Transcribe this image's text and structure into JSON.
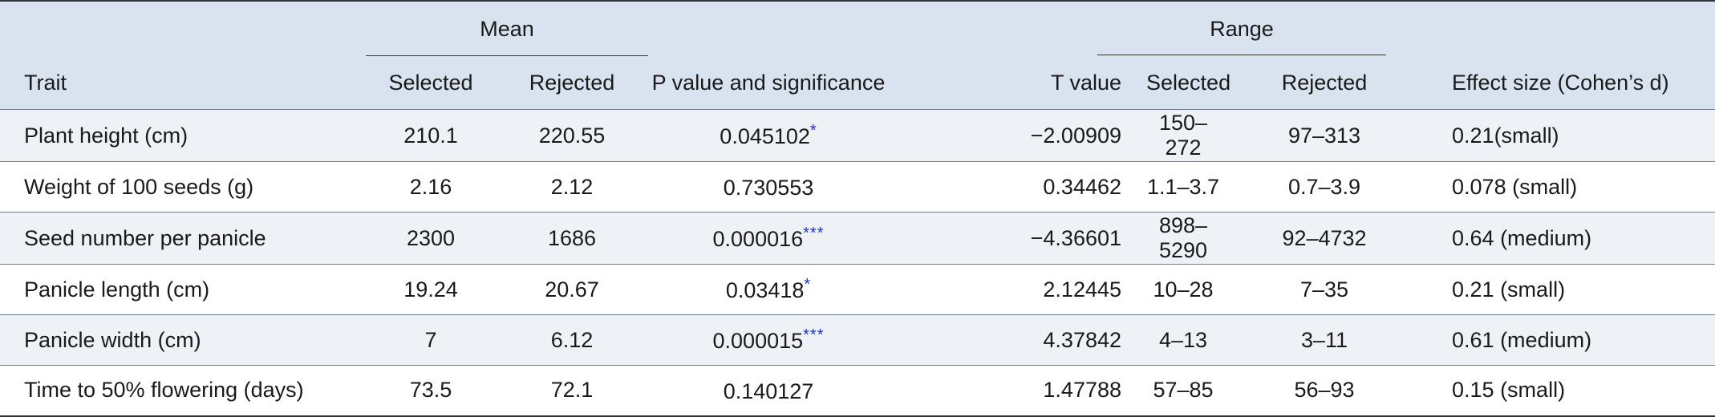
{
  "table": {
    "group_headers": {
      "mean": "Mean",
      "range": "Range"
    },
    "columns": {
      "trait": "Trait",
      "mean_selected": "Selected",
      "mean_rejected": "Rejected",
      "p_value": "P value and significance",
      "t_value": "T value",
      "range_selected": "Selected",
      "range_rejected": "Rejected",
      "effect_size": "Effect size (Cohen’s d)"
    },
    "rows": [
      {
        "trait": "Plant height (cm)",
        "mean_selected": "210.1",
        "mean_rejected": "220.55",
        "p_value": "0.045102",
        "sig": "*",
        "t_value": "−2.00909",
        "range_selected": "150–272",
        "range_rejected": "97–313",
        "effect_size": "0.21(small)"
      },
      {
        "trait": "Weight of 100 seeds (g)",
        "mean_selected": "2.16",
        "mean_rejected": "2.12",
        "p_value": "0.730553",
        "sig": "",
        "t_value": "0.34462",
        "range_selected": "1.1–3.7",
        "range_rejected": "0.7–3.9",
        "effect_size": "0.078 (small)"
      },
      {
        "trait": "Seed number per panicle",
        "mean_selected": "2300",
        "mean_rejected": "1686",
        "p_value": "0.000016",
        "sig": "***",
        "t_value": "−4.36601",
        "range_selected": "898–5290",
        "range_rejected": "92–4732",
        "effect_size": "0.64 (medium)"
      },
      {
        "trait": "Panicle length (cm)",
        "mean_selected": "19.24",
        "mean_rejected": "20.67",
        "p_value": "0.03418",
        "sig": "*",
        "t_value": "2.12445",
        "range_selected": "10–28",
        "range_rejected": "7–35",
        "effect_size": "0.21 (small)"
      },
      {
        "trait": "Panicle width (cm)",
        "mean_selected": "7",
        "mean_rejected": "6.12",
        "p_value": "0.000015",
        "sig": "***",
        "t_value": "4.37842",
        "range_selected": "4–13",
        "range_rejected": "3–11",
        "effect_size": "0.61 (medium)"
      },
      {
        "trait": "Time to 50% flowering (days)",
        "mean_selected": "73.5",
        "mean_rejected": "72.1",
        "p_value": "0.140127",
        "sig": "",
        "t_value": "1.47788",
        "range_selected": "57–85",
        "range_rejected": "56–93",
        "effect_size": "0.15 (small)"
      }
    ]
  }
}
